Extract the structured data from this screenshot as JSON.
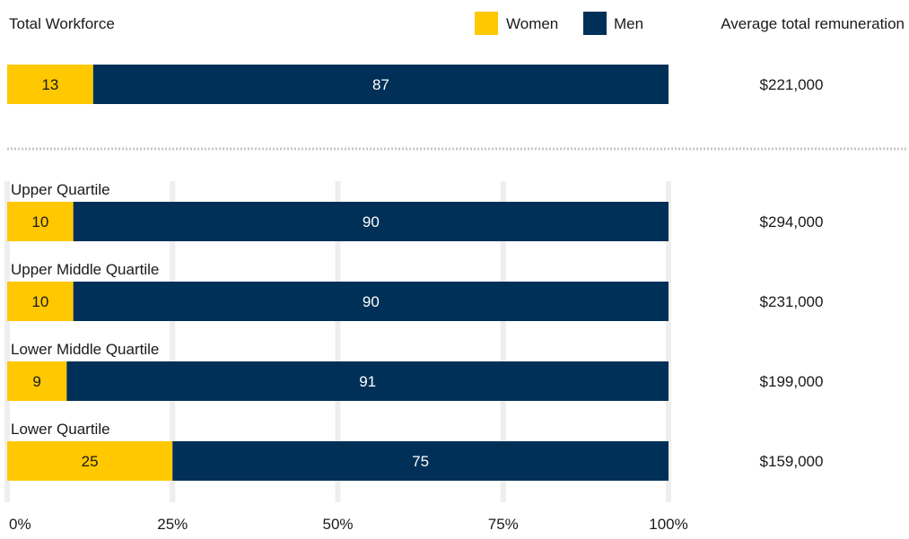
{
  "chart_data": {
    "type": "bar",
    "orientation": "horizontal",
    "stacked": true,
    "title": "Total Workforce",
    "right_column_header": "Average total remuneration",
    "colors": {
      "Women": "#FFC800",
      "Men": "#003057",
      "grid": "#eeeeee",
      "divider": "#c8c8c8"
    },
    "legend": {
      "placement": "top-right",
      "entries": [
        "Women",
        "Men"
      ]
    },
    "x_axis": {
      "ticks": [
        "0%",
        "25%",
        "50%",
        "75%",
        "100%"
      ],
      "tick_values": [
        0,
        25,
        50,
        75,
        100
      ],
      "range": [
        0,
        100
      ]
    },
    "total": {
      "label": "",
      "women": 13,
      "men": 87,
      "remuneration": "$221,000"
    },
    "quartiles": [
      {
        "label": "Upper Quartile",
        "women": 10,
        "men": 90,
        "remuneration": "$294,000"
      },
      {
        "label": "Upper Middle Quartile",
        "women": 10,
        "men": 90,
        "remuneration": "$231,000"
      },
      {
        "label": "Lower Middle Quartile",
        "women": 9,
        "men": 91,
        "remuneration": "$199,000"
      },
      {
        "label": "Lower Quartile",
        "women": 25,
        "men": 75,
        "remuneration": "$159,000"
      }
    ]
  }
}
